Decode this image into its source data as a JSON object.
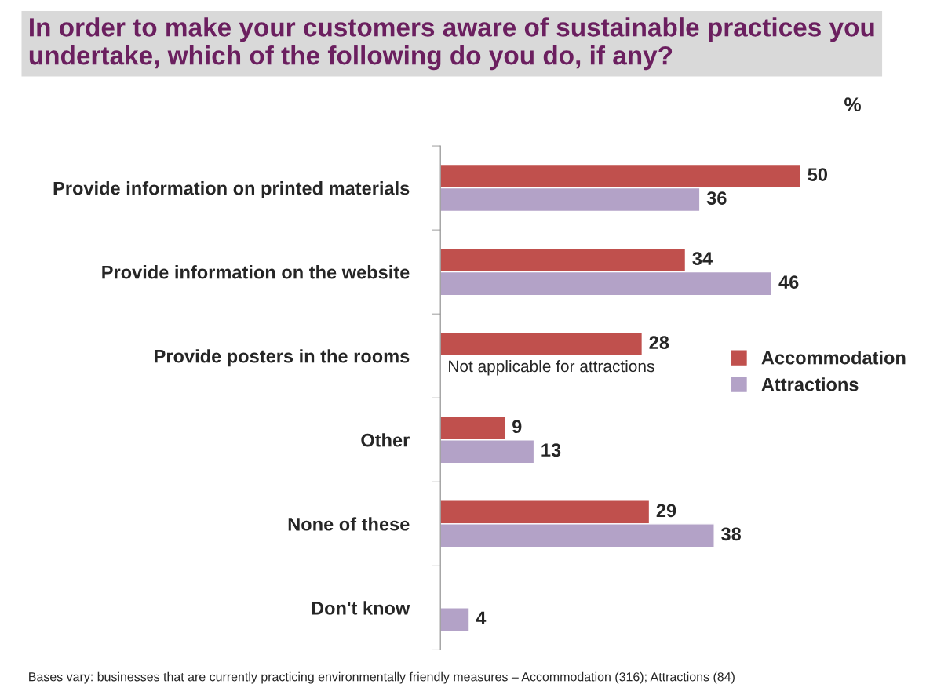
{
  "chart_data": {
    "type": "bar",
    "orientation": "horizontal",
    "title": "In order to make your customers aware of sustainable practices you undertake, which of the following do you do, if any?",
    "categories": [
      "Provide information on printed materials",
      "Provide information on the website",
      "Provide posters in the rooms",
      "Other",
      "None of these",
      "Don't know"
    ],
    "series": [
      {
        "name": "Accommodation",
        "color": "#c0504d",
        "values": [
          50,
          34,
          28,
          9,
          29,
          null
        ]
      },
      {
        "name": "Attractions",
        "color": "#b3a2c7",
        "values": [
          36,
          46,
          null,
          13,
          38,
          4
        ]
      }
    ],
    "data_labels": true,
    "legend": "right",
    "grid": false,
    "annotations": [
      "%",
      {
        "text": "Not applicable for attractions",
        "x": 0,
        "y": "Provide posters in the rooms"
      },
      "Bases vary: businesses that are currently practicing environmentally friendly measures – Accommodation (316); Attractions (84)"
    ]
  }
}
